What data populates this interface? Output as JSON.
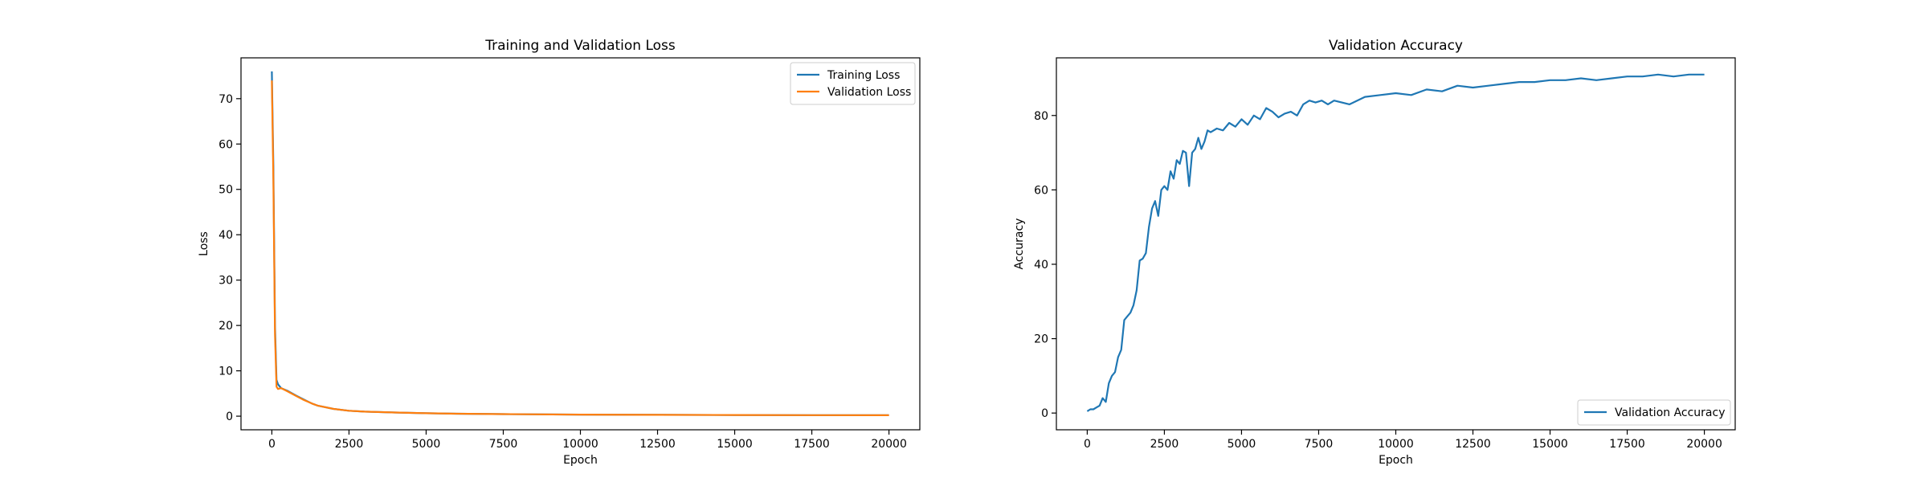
{
  "chart_data": [
    {
      "type": "line",
      "title": "Training and Validation Loss",
      "xlabel": "Epoch",
      "ylabel": "Loss",
      "xlim": [
        -1000,
        21000
      ],
      "ylim": [
        -3,
        79
      ],
      "xticks": [
        0,
        2500,
        5000,
        7500,
        10000,
        12500,
        15000,
        17500,
        20000
      ],
      "yticks": [
        0,
        10,
        20,
        30,
        40,
        50,
        60,
        70
      ],
      "grid": false,
      "legend_position": "top-right",
      "series": [
        {
          "name": "Training Loss",
          "color": "#1f77b4",
          "x": [
            0,
            50,
            100,
            150,
            200,
            300,
            500,
            800,
            1000,
            1300,
            1500,
            2000,
            2500,
            3000,
            4000,
            5000,
            6000,
            7500,
            10000,
            12500,
            15000,
            17500,
            20000
          ],
          "y": [
            76.0,
            55.0,
            20.0,
            8.0,
            7.0,
            6.2,
            5.6,
            4.5,
            3.8,
            2.8,
            2.3,
            1.6,
            1.2,
            1.0,
            0.8,
            0.65,
            0.55,
            0.45,
            0.35,
            0.3,
            0.25,
            0.22,
            0.2
          ]
        },
        {
          "name": "Validation Loss",
          "color": "#ff7f0e",
          "x": [
            0,
            50,
            100,
            150,
            200,
            300,
            500,
            800,
            1000,
            1300,
            1500,
            2000,
            2500,
            3000,
            4000,
            5000,
            6000,
            7500,
            10000,
            12500,
            15000,
            17500,
            20000
          ],
          "y": [
            74.0,
            52.0,
            18.0,
            6.5,
            6.0,
            6.2,
            5.5,
            4.4,
            3.7,
            2.8,
            2.3,
            1.6,
            1.2,
            1.0,
            0.8,
            0.65,
            0.55,
            0.45,
            0.35,
            0.3,
            0.25,
            0.22,
            0.2
          ]
        }
      ]
    },
    {
      "type": "line",
      "title": "Validation Accuracy",
      "xlabel": "Epoch",
      "ylabel": "Accuracy",
      "xlim": [
        -1000,
        21000
      ],
      "ylim": [
        -4.5,
        95.5
      ],
      "xticks": [
        0,
        2500,
        5000,
        7500,
        10000,
        12500,
        15000,
        17500,
        20000
      ],
      "yticks": [
        0,
        20,
        40,
        60,
        80
      ],
      "grid": false,
      "legend_position": "bottom-right",
      "series": [
        {
          "name": "Validation Accuracy",
          "color": "#1f77b4",
          "x": [
            0,
            100,
            200,
            300,
            400,
            500,
            600,
            700,
            800,
            900,
            1000,
            1100,
            1200,
            1300,
            1400,
            1500,
            1600,
            1700,
            1800,
            1900,
            2000,
            2100,
            2200,
            2300,
            2400,
            2500,
            2600,
            2700,
            2800,
            2900,
            3000,
            3100,
            3200,
            3300,
            3400,
            3500,
            3600,
            3700,
            3800,
            3900,
            4000,
            4200,
            4400,
            4600,
            4800,
            5000,
            5200,
            5400,
            5600,
            5800,
            6000,
            6200,
            6400,
            6600,
            6800,
            7000,
            7200,
            7400,
            7600,
            7800,
            8000,
            8500,
            9000,
            9500,
            10000,
            10500,
            11000,
            11500,
            12000,
            12500,
            13000,
            13500,
            14000,
            14500,
            15000,
            15500,
            16000,
            16500,
            17000,
            17500,
            18000,
            18500,
            19000,
            19500,
            20000
          ],
          "y": [
            0.5,
            1.0,
            1.0,
            1.5,
            2.0,
            4.0,
            3.0,
            8.0,
            10.0,
            11.0,
            15.0,
            17.0,
            25.0,
            26.0,
            27.0,
            29.0,
            33.0,
            41.0,
            41.5,
            43.0,
            50.0,
            55.0,
            57.0,
            53.0,
            60.0,
            61.0,
            60.0,
            65.0,
            63.0,
            68.0,
            67.0,
            70.5,
            70.0,
            61.0,
            70.0,
            71.0,
            74.0,
            71.0,
            73.0,
            76.0,
            75.5,
            76.5,
            76.0,
            78.0,
            77.0,
            79.0,
            77.5,
            80.0,
            79.0,
            82.0,
            81.0,
            79.5,
            80.5,
            81.0,
            80.0,
            83.0,
            84.0,
            83.5,
            84.0,
            83.0,
            84.0,
            83.0,
            85.0,
            85.5,
            86.0,
            85.5,
            87.0,
            86.5,
            88.0,
            87.5,
            88.0,
            88.5,
            89.0,
            89.0,
            89.5,
            89.5,
            90.0,
            89.5,
            90.0,
            90.5,
            90.5,
            91.0,
            90.5,
            91.0,
            91.0
          ]
        }
      ]
    }
  ]
}
